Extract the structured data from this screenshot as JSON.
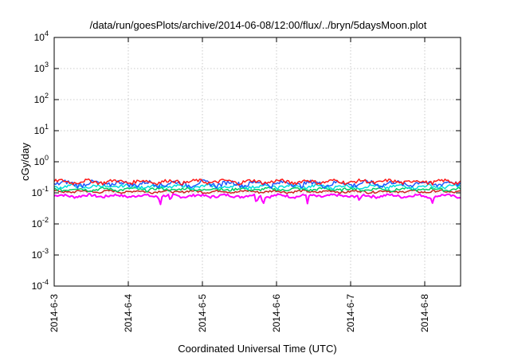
{
  "chart_data": {
    "type": "line",
    "title": "/data/run/goesPlots/archive/2014-06-08/12:00/flux/../bryn/5daysMoon.plot",
    "xlabel": "Coordinated Universal Time (UTC)",
    "ylabel": "cGy/day",
    "x_ticks": [
      "2014-6-3",
      "2014-6-4",
      "2014-6-5",
      "2014-6-6",
      "2014-6-7",
      "2014-6-8"
    ],
    "x_range": [
      "2014-06-03 00:00",
      "2014-06-08 12:00"
    ],
    "y_scale": "log",
    "y_range": [
      0.0001,
      10000
    ],
    "y_ticks": [
      {
        "base": "10",
        "exp": "-4"
      },
      {
        "base": "10",
        "exp": "-3"
      },
      {
        "base": "10",
        "exp": "-2"
      },
      {
        "base": "10",
        "exp": "-1"
      },
      {
        "base": "10",
        "exp": "0"
      },
      {
        "base": "10",
        "exp": "1"
      },
      {
        "base": "10",
        "exp": "2"
      },
      {
        "base": "10",
        "exp": "3"
      },
      {
        "base": "10",
        "exp": "4"
      }
    ],
    "grid": true,
    "series": [
      {
        "color": "#ff00ff",
        "level": 0.08,
        "noise": 0.12,
        "dips": [
          1.43,
          1.57,
          2.73,
          2.82,
          3.42,
          4.12,
          5.1
        ]
      },
      {
        "color": "#cc2020",
        "level": 0.11,
        "noise": 0.1,
        "dips": []
      },
      {
        "color": "#00cc66",
        "level": 0.13,
        "noise": 0.12,
        "dips": []
      },
      {
        "color": "#00dddd",
        "level": 0.16,
        "noise": 0.14,
        "dips": []
      },
      {
        "color": "#1e5aff",
        "level": 0.2,
        "noise": 0.22,
        "dips": []
      },
      {
        "color": "#ff1a1a",
        "level": 0.23,
        "noise": 0.16,
        "dips": []
      }
    ]
  }
}
